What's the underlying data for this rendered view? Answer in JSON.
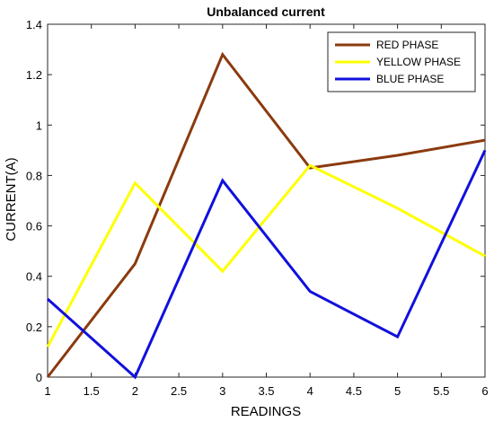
{
  "chart_data": {
    "type": "line",
    "title": "Unbalanced current",
    "xlabel": "READINGS",
    "ylabel": "CURRENT(A)",
    "xlim": [
      1,
      6
    ],
    "ylim": [
      0,
      1.4
    ],
    "xticks": [
      "1",
      "1.5",
      "2",
      "2.5",
      "3",
      "3.5",
      "4",
      "4.5",
      "5",
      "5.5",
      "6"
    ],
    "yticks": [
      "0",
      "0.2",
      "0.4",
      "0.6",
      "0.8",
      "1",
      "1.2",
      "1.4"
    ],
    "x": [
      1,
      2,
      3,
      4,
      5,
      6
    ],
    "grid": false,
    "legend_position": "top-right",
    "series": [
      {
        "name": "RED PHASE",
        "color": "#8B3A0F",
        "values": [
          0.0,
          0.45,
          1.28,
          0.83,
          0.88,
          0.94
        ]
      },
      {
        "name": "YELLOW PHASE",
        "color": "#FFFF00",
        "values": [
          0.12,
          0.77,
          0.42,
          0.84,
          0.67,
          0.48
        ]
      },
      {
        "name": "BLUE PHASE",
        "color": "#1010DD",
        "values": [
          0.31,
          0.0,
          0.78,
          0.34,
          0.16,
          0.9
        ]
      }
    ]
  }
}
